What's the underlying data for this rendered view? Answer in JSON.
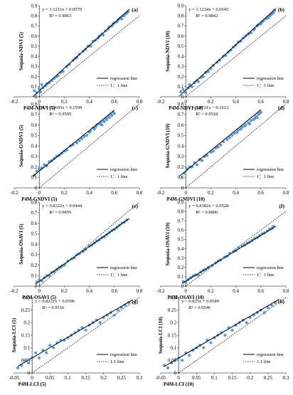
{
  "chart_data": [
    {
      "type": "scatter",
      "panel": "(a)",
      "xlabel": "P4M-NDVI (5)",
      "ylabel": "Sequoia-NDVI (5)",
      "xlim": [
        -0.2,
        0.8
      ],
      "ylim": [
        0,
        0.9
      ],
      "xticks": [
        "-0.2",
        "0",
        "0.2",
        "0.4",
        "0.6",
        "0.8"
      ],
      "yticks": [
        "0",
        "0.1",
        "0.2",
        "0.3",
        "0.4",
        "0.5",
        "0.6",
        "0.7",
        "0.8",
        "0.9"
      ],
      "equation": "y = 1.1211x + 0.0579",
      "r2": "R² = 0.9863",
      "slope": 1.1211,
      "intercept": 0.0579,
      "fit_x": [
        -0.05,
        0.72
      ],
      "legend": [
        "regression line",
        "1：1 line"
      ],
      "x": [
        -0.04,
        -0.02,
        0.0,
        0.01,
        0.02,
        0.03,
        0.05,
        0.06,
        0.08,
        0.1,
        0.12,
        0.14,
        0.15,
        0.17,
        0.19,
        0.22,
        0.24,
        0.27,
        0.29,
        0.3,
        0.32,
        0.35,
        0.37,
        0.39,
        0.41,
        0.43,
        0.45,
        0.47,
        0.48,
        0.5,
        0.51,
        0.53,
        0.55,
        0.56,
        0.58,
        0.59,
        0.6,
        0.62,
        0.63,
        0.64,
        0.65,
        0.66,
        0.67,
        0.68,
        0.69,
        0.7,
        0.71
      ],
      "y": [
        0.06,
        0.04,
        0.08,
        0.05,
        0.12,
        0.09,
        0.11,
        0.13,
        0.14,
        0.16,
        0.18,
        0.2,
        0.21,
        0.24,
        0.25,
        0.3,
        0.32,
        0.36,
        0.38,
        0.39,
        0.42,
        0.45,
        0.47,
        0.5,
        0.5,
        0.55,
        0.56,
        0.58,
        0.6,
        0.62,
        0.61,
        0.65,
        0.67,
        0.69,
        0.7,
        0.72,
        0.73,
        0.74,
        0.76,
        0.77,
        0.78,
        0.77,
        0.8,
        0.8,
        0.82,
        0.83,
        0.84
      ]
    },
    {
      "type": "scatter",
      "panel": "(b)",
      "xlabel": "P4M-NDVI (10)",
      "ylabel": "Sequoia-NDVI (10)",
      "xlim": [
        -0.2,
        0.8
      ],
      "ylim": [
        0,
        0.9
      ],
      "xticks": [
        "-0.2",
        "0",
        "0.2",
        "0.4",
        "0.6",
        "0.8"
      ],
      "yticks": [
        "0",
        "0.1",
        "0.2",
        "0.3",
        "0.4",
        "0.5",
        "0.6",
        "0.7",
        "0.8",
        "0.9"
      ],
      "equation": "y = 1.1234x + 0.0645",
      "r2": "R² = 0.9842",
      "slope": 1.1234,
      "intercept": 0.0645,
      "fit_x": [
        -0.05,
        0.72
      ],
      "legend": [
        "regression line",
        "1：1 line"
      ],
      "x": [
        -0.04,
        -0.02,
        0.0,
        0.02,
        0.03,
        0.05,
        0.07,
        0.09,
        0.1,
        0.12,
        0.14,
        0.16,
        0.18,
        0.2,
        0.22,
        0.25,
        0.27,
        0.3,
        0.32,
        0.34,
        0.36,
        0.38,
        0.4,
        0.42,
        0.44,
        0.46,
        0.48,
        0.5,
        0.52,
        0.54,
        0.55,
        0.57,
        0.58,
        0.6,
        0.61,
        0.62,
        0.64,
        0.65,
        0.66,
        0.67,
        0.68,
        0.69,
        0.7,
        0.71
      ],
      "y": [
        0.05,
        0.07,
        0.04,
        0.09,
        0.12,
        0.1,
        0.14,
        0.16,
        0.15,
        0.19,
        0.2,
        0.24,
        0.25,
        0.28,
        0.31,
        0.34,
        0.36,
        0.4,
        0.41,
        0.44,
        0.46,
        0.49,
        0.51,
        0.54,
        0.55,
        0.58,
        0.6,
        0.62,
        0.63,
        0.66,
        0.67,
        0.7,
        0.71,
        0.72,
        0.74,
        0.75,
        0.77,
        0.78,
        0.78,
        0.8,
        0.81,
        0.82,
        0.83,
        0.85
      ]
    },
    {
      "type": "scatter",
      "panel": "(c)",
      "xlabel": "P4M-GNDVI (5)",
      "ylabel": "Sequoia-GNDVI (5)",
      "xlim": [
        -0.2,
        0.8
      ],
      "ylim": [
        0,
        0.8
      ],
      "xticks": [
        "-0.2",
        "0",
        "0.2",
        "0.4",
        "0.6",
        "0.8"
      ],
      "yticks": [
        "0",
        "0.1",
        "0.2",
        "0.3",
        "0.4",
        "0.5",
        "0.6",
        "0.7",
        "0.8"
      ],
      "equation": "y = 0.9693x + 0.1599",
      "r2": "R² = 0.9595",
      "slope": 0.9693,
      "intercept": 0.1599,
      "fit_x": [
        -0.05,
        0.6
      ],
      "legend": [
        "regression line",
        "1：1 line"
      ],
      "x": [
        -0.04,
        -0.02,
        0.0,
        0.02,
        0.04,
        0.06,
        0.08,
        0.1,
        0.12,
        0.14,
        0.16,
        0.18,
        0.2,
        0.22,
        0.25,
        0.27,
        0.3,
        0.32,
        0.34,
        0.36,
        0.38,
        0.4,
        0.41,
        0.43,
        0.44,
        0.45,
        0.46,
        0.48,
        0.49,
        0.5,
        0.51,
        0.52,
        0.53,
        0.54,
        0.55,
        0.56,
        0.57,
        0.58,
        0.59,
        0.6
      ],
      "y": [
        0.12,
        0.16,
        0.18,
        0.19,
        0.22,
        0.21,
        0.25,
        0.26,
        0.28,
        0.3,
        0.31,
        0.33,
        0.35,
        0.36,
        0.4,
        0.41,
        0.43,
        0.45,
        0.47,
        0.49,
        0.5,
        0.53,
        0.54,
        0.57,
        0.56,
        0.58,
        0.6,
        0.61,
        0.62,
        0.6,
        0.64,
        0.63,
        0.66,
        0.65,
        0.68,
        0.67,
        0.7,
        0.69,
        0.72,
        0.71
      ]
    },
    {
      "type": "scatter",
      "panel": "(d)",
      "xlabel": "P4M-GNDVI (10)",
      "ylabel": "Sequoia-GNDVI (10)",
      "xlim": [
        -0.2,
        0.8
      ],
      "ylim": [
        0,
        0.8
      ],
      "xticks": [
        "-0.2",
        "0",
        "0.2",
        "0.4",
        "0.6",
        "0.8"
      ],
      "yticks": [
        "0",
        "0.1",
        "0.2",
        "0.3",
        "0.4",
        "0.5",
        "0.6",
        "0.7",
        "0.8"
      ],
      "equation": "y = 0.9721x + 0.1612",
      "r2": "R² = 0.9518",
      "slope": 0.9721,
      "intercept": 0.1612,
      "fit_x": [
        -0.05,
        0.6
      ],
      "legend": [
        "regression line",
        "1：1 line"
      ],
      "x": [
        -0.03,
        -0.01,
        0.01,
        0.03,
        0.05,
        0.07,
        0.09,
        0.11,
        0.13,
        0.15,
        0.17,
        0.2,
        0.22,
        0.24,
        0.26,
        0.28,
        0.3,
        0.33,
        0.35,
        0.37,
        0.39,
        0.41,
        0.42,
        0.44,
        0.45,
        0.47,
        0.48,
        0.5,
        0.51,
        0.52,
        0.54,
        0.55,
        0.56,
        0.57,
        0.58,
        0.59,
        0.6
      ],
      "y": [
        0.1,
        0.14,
        0.18,
        0.2,
        0.2,
        0.24,
        0.22,
        0.27,
        0.26,
        0.3,
        0.31,
        0.34,
        0.35,
        0.38,
        0.39,
        0.41,
        0.44,
        0.46,
        0.48,
        0.5,
        0.52,
        0.53,
        0.55,
        0.56,
        0.58,
        0.59,
        0.6,
        0.62,
        0.61,
        0.64,
        0.65,
        0.66,
        0.68,
        0.67,
        0.7,
        0.71,
        0.72
      ]
    },
    {
      "type": "scatter",
      "panel": "(e)",
      "xlabel": "P4M-OSAVI (5)",
      "ylabel": "Sequoia-OSAVI (5)",
      "xlim": [
        -0.2,
        0.8
      ],
      "ylim": [
        0,
        0.8
      ],
      "xticks": [
        "-0.2",
        "0",
        "0.2",
        "0.4",
        "0.6",
        "0.8"
      ],
      "yticks": [
        "0",
        "0.1",
        "0.2",
        "0.3",
        "0.4",
        "0.5",
        "0.6",
        "0.7",
        "0.8"
      ],
      "equation": "y = 0.8322x + 0.0444",
      "r2": "R² = 0.9859",
      "slope": 0.8322,
      "intercept": 0.0444,
      "fit_x": [
        -0.03,
        0.72
      ],
      "legend": [
        "regression line",
        "1：1 line"
      ],
      "x": [
        -0.02,
        0.0,
        0.02,
        0.04,
        0.06,
        0.08,
        0.1,
        0.12,
        0.14,
        0.16,
        0.18,
        0.2,
        0.23,
        0.26,
        0.28,
        0.3,
        0.32,
        0.35,
        0.37,
        0.4,
        0.42,
        0.44,
        0.46,
        0.48,
        0.5,
        0.52,
        0.54,
        0.56,
        0.58,
        0.6,
        0.62,
        0.64,
        0.66,
        0.68,
        0.7
      ],
      "y": [
        0.04,
        0.06,
        0.05,
        0.08,
        0.1,
        0.1,
        0.13,
        0.14,
        0.16,
        0.18,
        0.19,
        0.2,
        0.24,
        0.26,
        0.27,
        0.3,
        0.31,
        0.33,
        0.35,
        0.38,
        0.39,
        0.41,
        0.43,
        0.44,
        0.46,
        0.47,
        0.49,
        0.51,
        0.53,
        0.54,
        0.56,
        0.58,
        0.6,
        0.61,
        0.63
      ]
    },
    {
      "type": "scatter",
      "panel": "(f)",
      "xlabel": "P4M-OSAVI (10)",
      "ylabel": "Sequoia-OSAVI (10)",
      "xlim": [
        -0.2,
        0.8
      ],
      "ylim": [
        0,
        0.9
      ],
      "xticks": [
        "-0.2",
        "0",
        "0.2",
        "0.4",
        "0.6",
        "0.8"
      ],
      "yticks": [
        "0",
        "0.1",
        "0.2",
        "0.3",
        "0.4",
        "0.5",
        "0.6",
        "0.7",
        "0.8",
        "0.9"
      ],
      "equation": "y = 0.8182x + 0.0528",
      "r2": "R² = 0.9806",
      "slope": 0.8182,
      "intercept": 0.0528,
      "fit_x": [
        -0.03,
        0.72
      ],
      "legend": [
        "regression line",
        "1：1 line"
      ],
      "x": [
        -0.02,
        0.0,
        0.02,
        0.04,
        0.06,
        0.08,
        0.1,
        0.12,
        0.14,
        0.16,
        0.18,
        0.21,
        0.24,
        0.26,
        0.28,
        0.31,
        0.33,
        0.35,
        0.38,
        0.4,
        0.42,
        0.45,
        0.47,
        0.49,
        0.51,
        0.53,
        0.55,
        0.57,
        0.59,
        0.61,
        0.63,
        0.65,
        0.67,
        0.69,
        0.7
      ],
      "y": [
        0.05,
        0.04,
        0.07,
        0.09,
        0.11,
        0.12,
        0.12,
        0.15,
        0.17,
        0.18,
        0.2,
        0.22,
        0.25,
        0.27,
        0.28,
        0.31,
        0.32,
        0.35,
        0.37,
        0.38,
        0.41,
        0.43,
        0.44,
        0.46,
        0.47,
        0.49,
        0.51,
        0.52,
        0.54,
        0.56,
        0.57,
        0.59,
        0.61,
        0.62,
        0.64
      ]
    },
    {
      "type": "scatter",
      "panel": "(g)",
      "xlabel": "P4M-LCI (5)",
      "ylabel": "Sequoia-LCI (5)",
      "xlim": [
        -0.05,
        0.3
      ],
      "ylim": [
        0,
        0.3
      ],
      "xticks": [
        "-0.05",
        "0",
        "0.05",
        "0.1",
        "0.15",
        "0.2",
        "0.25",
        "0.3"
      ],
      "yticks": [
        "0",
        "0.05",
        "0.1",
        "0.15",
        "0.2",
        "0.25",
        "0.3"
      ],
      "equation": "y = 0.8221x + 0.0596",
      "r2": "R² = 0.9516",
      "slope": 0.8221,
      "intercept": 0.0596,
      "fit_x": [
        -0.04,
        0.28
      ],
      "legend": [
        "regression line",
        "1:1 line"
      ],
      "x": [
        -0.04,
        -0.03,
        -0.02,
        -0.01,
        0.0,
        0.01,
        0.02,
        0.03,
        0.04,
        0.05,
        0.06,
        0.07,
        0.08,
        0.09,
        0.1,
        0.11,
        0.12,
        0.13,
        0.14,
        0.15,
        0.16,
        0.17,
        0.18,
        0.19,
        0.2,
        0.21,
        0.22,
        0.23,
        0.24,
        0.25,
        0.26,
        0.27
      ],
      "y": [
        0.02,
        0.03,
        0.05,
        0.04,
        0.06,
        0.08,
        0.06,
        0.09,
        0.08,
        0.11,
        0.1,
        0.12,
        0.13,
        0.13,
        0.14,
        0.15,
        0.16,
        0.17,
        0.18,
        0.17,
        0.19,
        0.2,
        0.21,
        0.2,
        0.22,
        0.23,
        0.24,
        0.23,
        0.25,
        0.26,
        0.27,
        0.28
      ]
    },
    {
      "type": "scatter",
      "panel": "(h)",
      "xlabel": "P4M-LCI (10)",
      "ylabel": "Sequoia-LCI (10)",
      "xlim": [
        -0.05,
        0.3
      ],
      "ylim": [
        0,
        0.3
      ],
      "xticks": [
        "-0.05",
        "0",
        "0.05",
        "0.1",
        "0.15",
        "0.2",
        "0.25",
        "0.3"
      ],
      "yticks": [
        "0",
        "0.05",
        "0.1",
        "0.15",
        "0.2",
        "0.25",
        "0.3"
      ],
      "equation": "y = 0.833x + 0.0589",
      "r2": "R² = 0.9546",
      "slope": 0.833,
      "intercept": 0.0589,
      "fit_x": [
        -0.04,
        0.28
      ],
      "legend": [
        "regression line",
        "1:1 line"
      ],
      "x": [
        -0.04,
        -0.03,
        -0.02,
        -0.01,
        0.0,
        0.01,
        0.02,
        0.03,
        0.04,
        0.05,
        0.06,
        0.07,
        0.08,
        0.09,
        0.1,
        0.11,
        0.12,
        0.13,
        0.14,
        0.15,
        0.16,
        0.17,
        0.18,
        0.19,
        0.2,
        0.21,
        0.22,
        0.23,
        0.24,
        0.25,
        0.26,
        0.27
      ],
      "y": [
        0.03,
        0.02,
        0.04,
        0.05,
        0.06,
        0.05,
        0.08,
        0.07,
        0.09,
        0.1,
        0.11,
        0.1,
        0.13,
        0.12,
        0.14,
        0.15,
        0.16,
        0.15,
        0.18,
        0.17,
        0.19,
        0.2,
        0.21,
        0.2,
        0.22,
        0.23,
        0.24,
        0.25,
        0.24,
        0.26,
        0.27,
        0.28
      ]
    }
  ],
  "colors": {
    "points": "#5b9bd5",
    "points_stroke": "#4a86c0",
    "regression": "#000000",
    "axis": "#000000"
  }
}
